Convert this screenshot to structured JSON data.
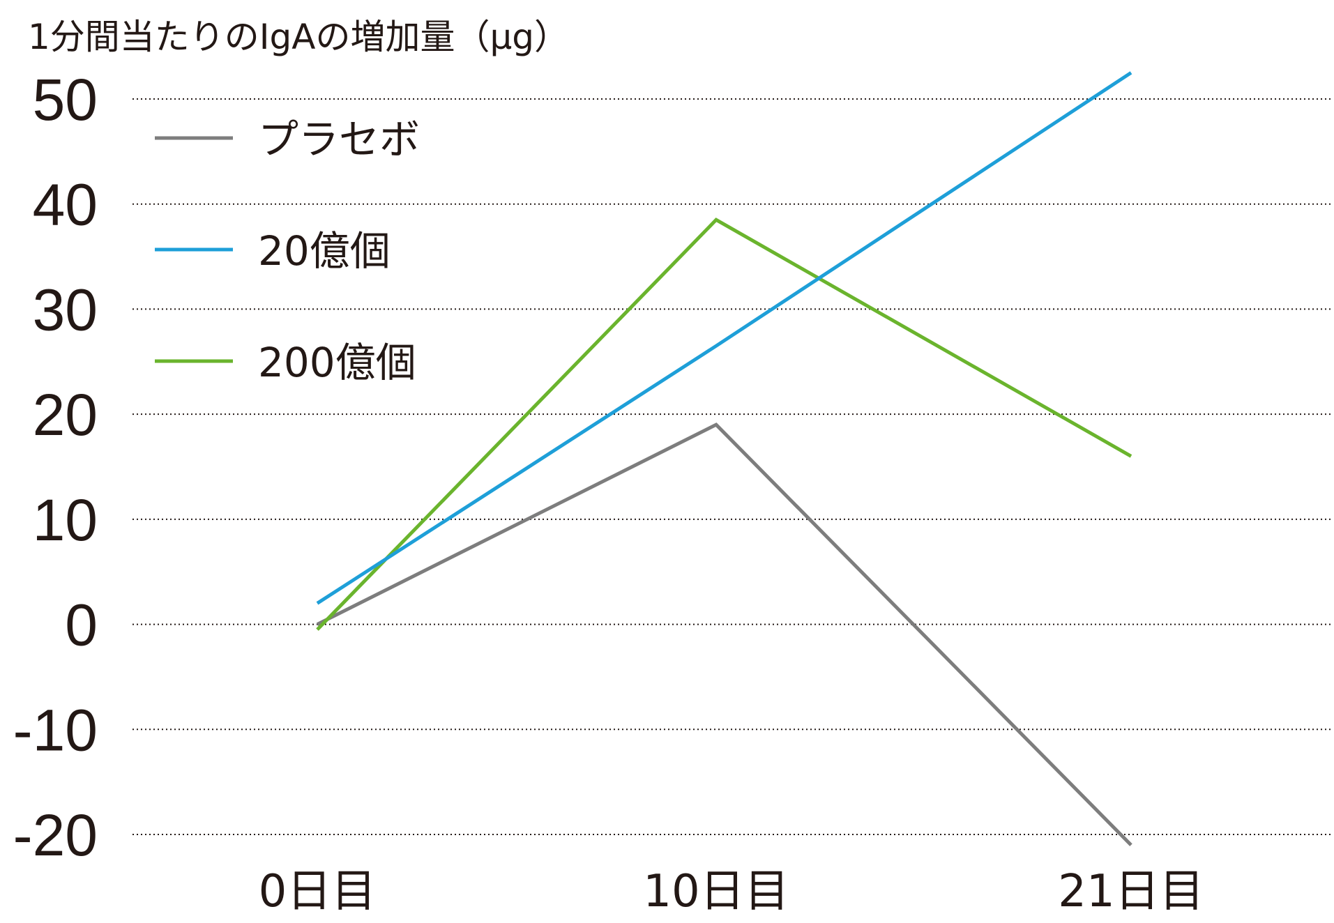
{
  "chart_data": {
    "type": "line",
    "ylabel": "1分間当たりのIgAの増加量（μg）",
    "xlabel": "",
    "categories": [
      "0日目",
      "10日目",
      "21日目"
    ],
    "ylim": [
      -20,
      50
    ],
    "yticks": [
      50,
      40,
      30,
      20,
      10,
      0,
      -10,
      -20
    ],
    "ytick_labels": [
      "50",
      "40",
      "30",
      "20",
      "10",
      "0",
      "-10",
      "-20"
    ],
    "grid": true,
    "legend_position": "top-left",
    "series": [
      {
        "name": "プラセボ",
        "color": "#7d7d7d",
        "values": [
          0,
          19,
          -21
        ]
      },
      {
        "name": "20億個",
        "color": "#1e9fd8",
        "values": [
          2,
          26.5,
          52.5
        ]
      },
      {
        "name": "200億個",
        "color": "#6ab42d",
        "values": [
          -0.5,
          38.5,
          16
        ]
      }
    ]
  }
}
